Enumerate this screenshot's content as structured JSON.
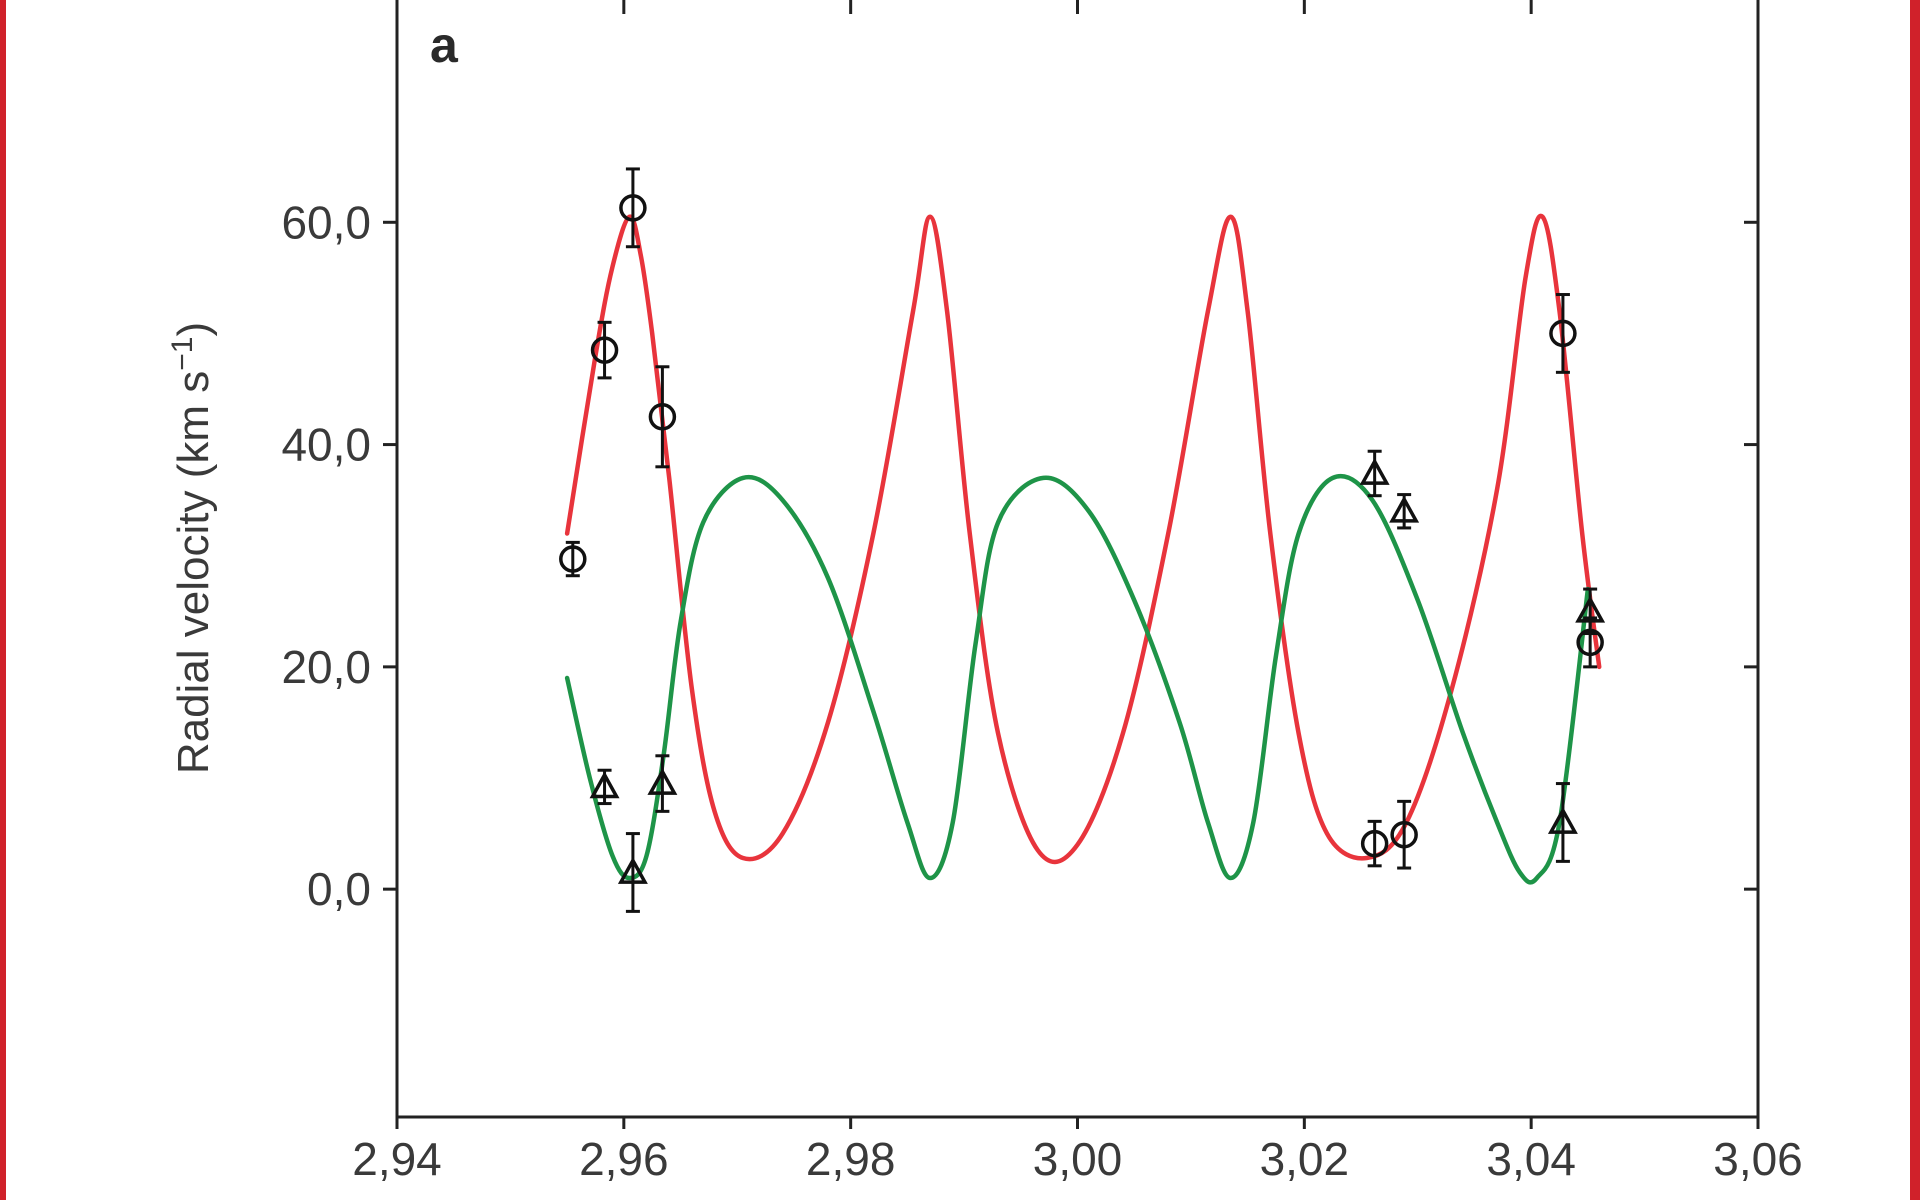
{
  "chart_data": {
    "type": "line",
    "panel_label": "a",
    "title": "",
    "xlabel": "",
    "ylabel": "Radial velocity (km s",
    "ylabel_superscript": "−1",
    "ylabel_suffix": ")",
    "xlim": [
      2.94,
      3.06
    ],
    "ylim": [
      -20.5,
      80
    ],
    "xticks": [
      2.94,
      2.96,
      2.98,
      3.0,
      3.02,
      3.04,
      3.06
    ],
    "xtick_labels": [
      "2,94",
      "2,96",
      "2,98",
      "3,00",
      "3,02",
      "3,04",
      "3,06"
    ],
    "yticks": [
      0,
      20,
      40,
      60
    ],
    "ytick_labels": [
      "0,0",
      "20,0",
      "40,0",
      "60,0"
    ],
    "grid": false,
    "series": [
      {
        "kind": "model",
        "color": "#e8343c",
        "x": [
          2.955,
          2.9575,
          2.959,
          2.9605,
          2.9615,
          2.9625,
          2.964,
          2.966,
          2.968,
          2.9705,
          2.974,
          2.978,
          2.982,
          2.9855,
          2.987,
          2.9885,
          2.9905,
          2.993,
          2.9965,
          3.0,
          3.004,
          3.008,
          3.0115,
          3.0135,
          3.015,
          3.017,
          3.0195,
          3.022,
          3.0255,
          3.029,
          3.033,
          3.037,
          3.0395,
          3.041,
          3.0425,
          3.0445,
          3.046
        ],
        "y": [
          32,
          48,
          56,
          60.5,
          57,
          50,
          37,
          18,
          7,
          2.8,
          5,
          15,
          32,
          52,
          60.5,
          52,
          32,
          14,
          3.5,
          4,
          14,
          32,
          52,
          60.5,
          52,
          32,
          14,
          5,
          2.8,
          6,
          18,
          36,
          55,
          60.5,
          52,
          32,
          20
        ]
      },
      {
        "kind": "model",
        "color": "#1e9448",
        "x": [
          2.955,
          2.957,
          2.959,
          2.9605,
          2.962,
          2.9635,
          2.965,
          2.967,
          2.9705,
          2.974,
          2.978,
          2.982,
          2.985,
          2.987,
          2.989,
          2.991,
          2.993,
          2.997,
          3.001,
          3.005,
          3.009,
          3.0115,
          3.0135,
          3.0155,
          3.0175,
          3.0195,
          3.0225,
          3.026,
          3.03,
          3.034,
          3.037,
          3.039,
          3.0405,
          3.0425,
          3.045
        ],
        "y": [
          19,
          10,
          3,
          1,
          3,
          12,
          24,
          33,
          37,
          35,
          28,
          16,
          6,
          1,
          6,
          22,
          33,
          37,
          34,
          26,
          15,
          6,
          1,
          6,
          21,
          32,
          37,
          35,
          26,
          14,
          6,
          1.5,
          1,
          6,
          27
        ]
      },
      {
        "kind": "observations",
        "marker": "circle",
        "color": "#111111",
        "x": [
          2.9555,
          2.9583,
          2.9608,
          2.9634,
          3.0262,
          3.0288,
          3.0428,
          3.0452
        ],
        "y": [
          29.7,
          48.5,
          61.3,
          42.5,
          4.1,
          4.9,
          50.0,
          22.2
        ],
        "err": [
          1.5,
          2.5,
          3.5,
          4.5,
          2.0,
          3.0,
          3.5,
          2.2
        ]
      },
      {
        "kind": "observations",
        "marker": "triangle",
        "color": "#111111",
        "x": [
          2.9583,
          2.9608,
          2.9634,
          3.0262,
          3.0288,
          3.0428,
          3.0452
        ],
        "y": [
          9.2,
          1.5,
          9.5,
          37.4,
          34.0,
          6.0,
          25.0
        ],
        "err": [
          1.5,
          3.5,
          2.5,
          2.0,
          1.5,
          3.5,
          2.0
        ]
      }
    ]
  }
}
